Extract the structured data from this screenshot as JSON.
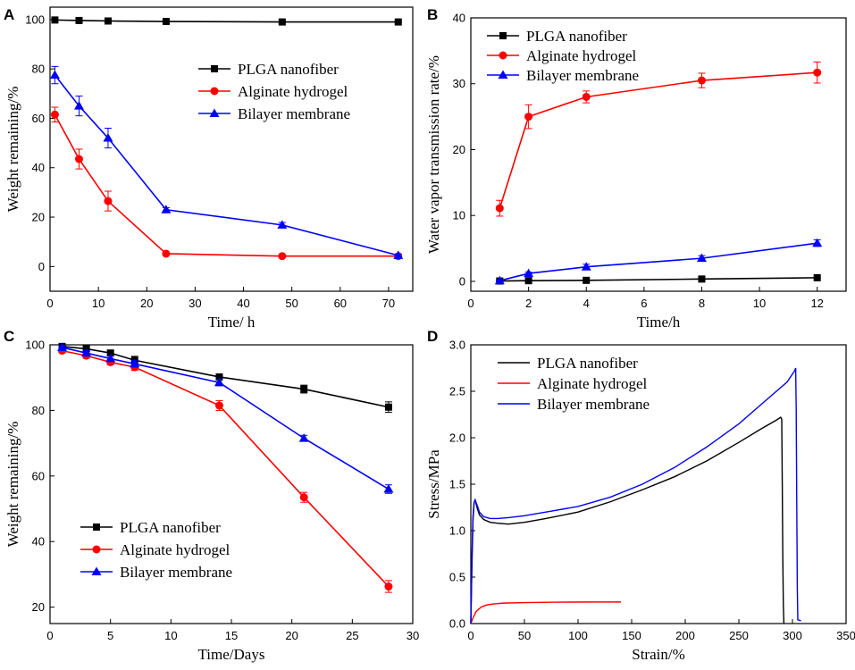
{
  "chart_data": [
    {
      "panel": "A",
      "type": "line",
      "xlabel": "Time/ h",
      "ylabel": "Weight remaining/%",
      "xlim": [
        0,
        75
      ],
      "ylim": [
        -10,
        105
      ],
      "xticks": [
        0,
        10,
        20,
        30,
        40,
        50,
        60,
        70
      ],
      "yticks": [
        0,
        20,
        40,
        60,
        80,
        100
      ],
      "legend_position": "center-right",
      "series": [
        {
          "name": "PLGA nanofiber",
          "color": "#000000",
          "marker": "square",
          "x": [
            1,
            6,
            12,
            24,
            48,
            72
          ],
          "y": [
            99.8,
            99.6,
            99.4,
            99.2,
            99.0,
            99.0
          ],
          "err": [
            0.3,
            0.3,
            0.3,
            0.3,
            0.3,
            0.3
          ]
        },
        {
          "name": "Alginate hydrogel",
          "color": "#ff0000",
          "marker": "circle",
          "x": [
            1,
            6,
            12,
            24,
            48,
            72
          ],
          "y": [
            61.5,
            43.5,
            26.5,
            5.2,
            4.2,
            4.2
          ],
          "err": [
            3,
            4,
            4,
            0.5,
            0.4,
            0.4
          ]
        },
        {
          "name": "Bilayer membrane",
          "color": "#0000ff",
          "marker": "triangle",
          "x": [
            1,
            6,
            12,
            24,
            48,
            72
          ],
          "y": [
            77.5,
            65,
            52,
            23,
            16.8,
            4.5
          ],
          "err": [
            3.5,
            4,
            4,
            0.8,
            1,
            0.5
          ]
        }
      ]
    },
    {
      "panel": "B",
      "type": "line",
      "xlabel": "Time/h",
      "ylabel": "Water vapor transmission rate/%",
      "xlim": [
        0,
        13
      ],
      "ylim": [
        -1.5,
        40
      ],
      "xticks": [
        0,
        2,
        4,
        6,
        8,
        10,
        12
      ],
      "yticks": [
        0,
        10,
        20,
        30,
        40
      ],
      "legend_position": "top-left",
      "series": [
        {
          "name": "PLGA nanofiber",
          "color": "#000000",
          "marker": "square",
          "x": [
            1,
            2,
            4,
            8,
            12
          ],
          "y": [
            0.05,
            0.1,
            0.15,
            0.35,
            0.55
          ],
          "err": [
            0.05,
            0.05,
            0.05,
            0.1,
            0.1
          ]
        },
        {
          "name": "Alginate hydrogel",
          "color": "#ff0000",
          "marker": "circle",
          "x": [
            1,
            2,
            4,
            8,
            12
          ],
          "y": [
            11.1,
            25,
            28,
            30.5,
            31.7
          ],
          "err": [
            1.2,
            1.8,
            0.9,
            1.1,
            1.6
          ]
        },
        {
          "name": "Bilayer membrane",
          "color": "#0000ff",
          "marker": "triangle",
          "x": [
            1,
            2,
            4,
            8,
            12
          ],
          "y": [
            0.1,
            1.2,
            2.2,
            3.5,
            5.8
          ],
          "err": [
            0.1,
            0.2,
            0.4,
            0.4,
            0.5
          ]
        }
      ]
    },
    {
      "panel": "C",
      "type": "line",
      "xlabel": "Time/Days",
      "ylabel": "Weight remaining/%",
      "xlim": [
        0,
        30
      ],
      "ylim": [
        15,
        100
      ],
      "xticks": [
        0,
        5,
        10,
        15,
        20,
        25,
        30
      ],
      "yticks": [
        20,
        40,
        60,
        80,
        100
      ],
      "legend_position": "bottom-left",
      "series": [
        {
          "name": "PLGA nanofiber",
          "color": "#000000",
          "marker": "square",
          "x": [
            1,
            3,
            5,
            7,
            14,
            21,
            28
          ],
          "y": [
            99.5,
            98.8,
            97.5,
            95.3,
            90.2,
            86.5,
            81
          ],
          "err": [
            0.5,
            0.8,
            0.8,
            1.2,
            0.8,
            1.2,
            1.6
          ]
        },
        {
          "name": "Alginate hydrogel",
          "color": "#ff0000",
          "marker": "circle",
          "x": [
            1,
            3,
            5,
            7,
            14,
            21,
            28
          ],
          "y": [
            98.2,
            96.7,
            94.7,
            93.2,
            81.5,
            53.5,
            26.3
          ],
          "err": [
            0.6,
            0.8,
            0.8,
            1,
            1.5,
            1.5,
            1.8
          ]
        },
        {
          "name": "Bilayer membrane",
          "color": "#0000ff",
          "marker": "triangle",
          "x": [
            1,
            3,
            5,
            7,
            14,
            21,
            28
          ],
          "y": [
            99.2,
            97.5,
            95.8,
            94.2,
            88.5,
            71.5,
            56
          ],
          "err": [
            0.5,
            0.7,
            0.8,
            1,
            1,
            0.9,
            1.3
          ]
        }
      ]
    },
    {
      "panel": "D",
      "type": "line",
      "xlabel": "Strain/%",
      "ylabel": "Stress/MPa",
      "xlim": [
        0,
        350
      ],
      "ylim": [
        0,
        3.0
      ],
      "xticks": [
        0,
        50,
        100,
        150,
        200,
        250,
        300,
        350
      ],
      "yticks": [
        0.0,
        0.5,
        1.0,
        1.5,
        2.0,
        2.5,
        3.0
      ],
      "legend_position": "top-left",
      "series": [
        {
          "name": "PLGA nanofiber",
          "color": "#000000",
          "marker": "none",
          "x": [
            0,
            1,
            2,
            3,
            4,
            6,
            8,
            12,
            18,
            25,
            35,
            50,
            70,
            100,
            130,
            160,
            190,
            220,
            250,
            270,
            285,
            289,
            290,
            290.5,
            291,
            291.5,
            292
          ],
          "y": [
            0,
            0.6,
            1.1,
            1.3,
            1.33,
            1.24,
            1.17,
            1.12,
            1.09,
            1.08,
            1.07,
            1.09,
            1.13,
            1.2,
            1.31,
            1.44,
            1.58,
            1.75,
            1.95,
            2.09,
            2.19,
            2.22,
            2.2,
            1.5,
            0.7,
            0.2,
            0
          ]
        },
        {
          "name": "Alginate hydrogel",
          "color": "#ff0000",
          "marker": "none",
          "x": [
            0,
            2,
            5,
            10,
            15,
            20,
            30,
            50,
            80,
            110,
            140
          ],
          "y": [
            0,
            0.06,
            0.13,
            0.18,
            0.2,
            0.21,
            0.22,
            0.225,
            0.23,
            0.232,
            0.232
          ]
        },
        {
          "name": "Bilayer membrane",
          "color": "#0000ff",
          "marker": "none",
          "x": [
            0,
            1,
            2,
            3,
            4,
            6,
            8,
            12,
            18,
            25,
            35,
            50,
            70,
            100,
            130,
            160,
            190,
            220,
            250,
            275,
            295,
            302,
            303,
            303.5,
            304,
            304.5,
            305,
            308
          ],
          "y": [
            0,
            0.7,
            1.15,
            1.3,
            1.33,
            1.27,
            1.2,
            1.15,
            1.13,
            1.13,
            1.14,
            1.16,
            1.2,
            1.26,
            1.36,
            1.5,
            1.68,
            1.9,
            2.15,
            2.4,
            2.6,
            2.72,
            2.75,
            2.3,
            1.3,
            0.4,
            0.04,
            0.03
          ]
        }
      ]
    }
  ]
}
